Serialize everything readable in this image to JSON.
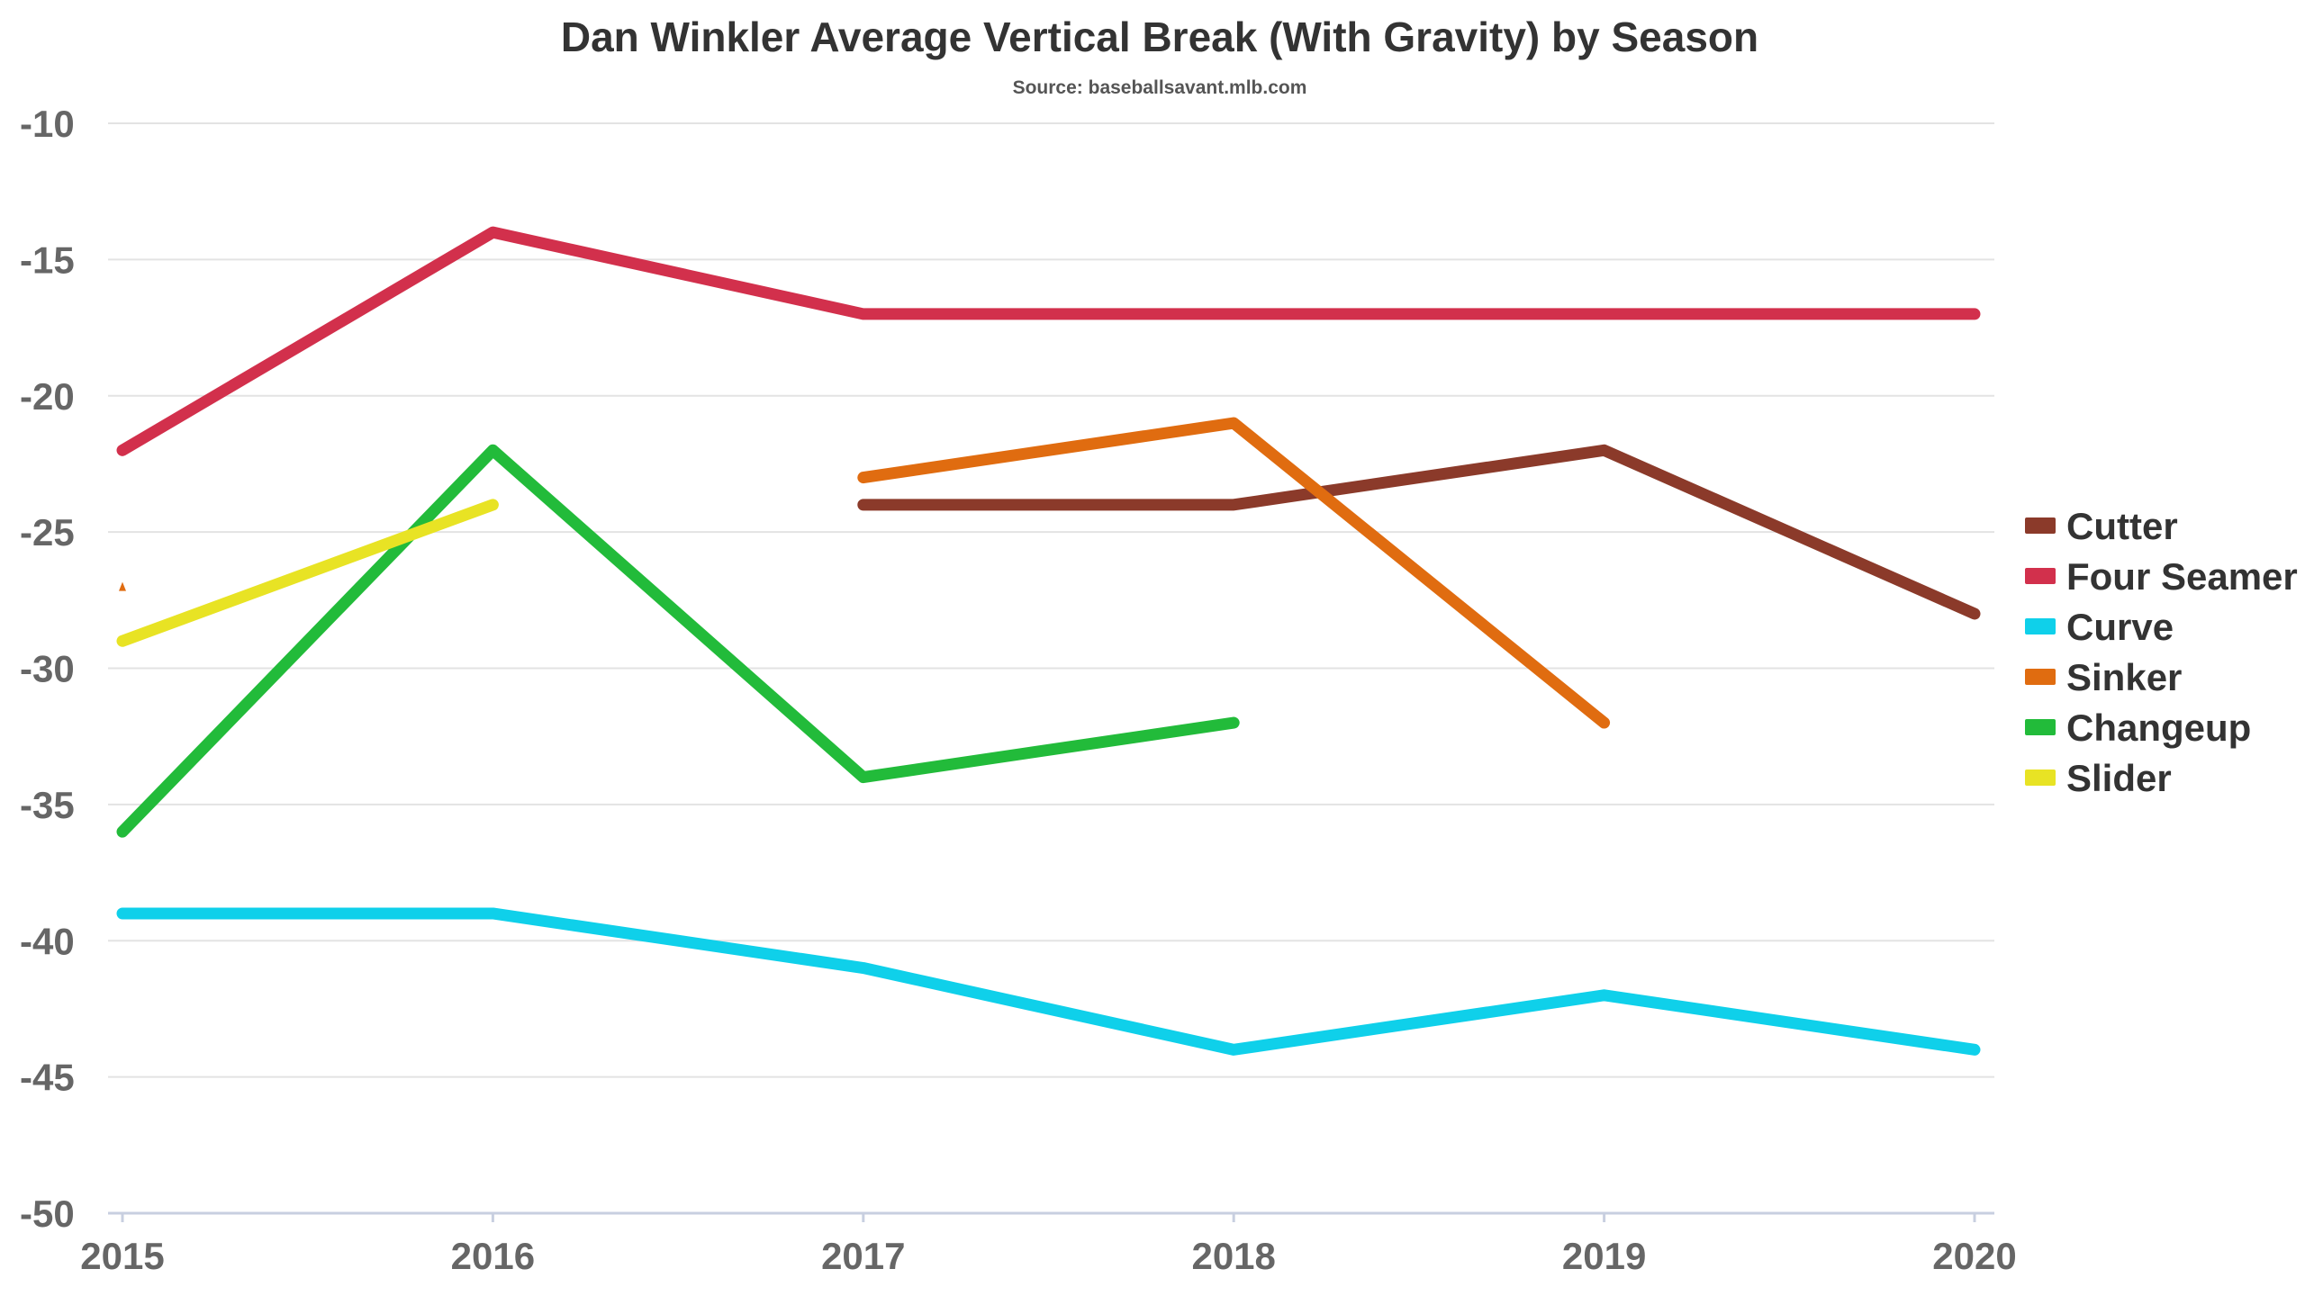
{
  "chart_data": {
    "type": "line",
    "title": "Dan Winkler Average Vertical Break (With Gravity) by Season",
    "subtitle": "Source: baseballsavant.mlb.com",
    "xlabel": "",
    "ylabel": "",
    "x": [
      "2015",
      "2016",
      "2017",
      "2018",
      "2019",
      "2020"
    ],
    "ylim": [
      -50,
      -10
    ],
    "yticks": [
      "-10",
      "-15",
      "-20",
      "-25",
      "-30",
      "-35",
      "-40",
      "-45",
      "-50"
    ],
    "grid": true,
    "legend": "right",
    "series": [
      {
        "name": "Cutter",
        "color": "#8b3a2a",
        "values": [
          null,
          null,
          -24,
          -24,
          -22,
          -28
        ]
      },
      {
        "name": "Four Seamer",
        "color": "#d2304c",
        "values": [
          -22,
          -14,
          -17,
          -17,
          -17,
          -17
        ]
      },
      {
        "name": "Curve",
        "color": "#0fd0ea",
        "values": [
          -39,
          -39,
          -41,
          -44,
          -42,
          -44
        ]
      },
      {
        "name": "Sinker",
        "color": "#e06c10",
        "values": [
          -27,
          null,
          -23,
          -21,
          -32,
          null
        ]
      },
      {
        "name": "Changeup",
        "color": "#22bb3a",
        "values": [
          -36,
          -22,
          -34,
          -32,
          null,
          null
        ]
      },
      {
        "name": "Slider",
        "color": "#e8e324",
        "values": [
          -29,
          -24,
          null,
          null,
          null,
          null
        ]
      }
    ]
  }
}
